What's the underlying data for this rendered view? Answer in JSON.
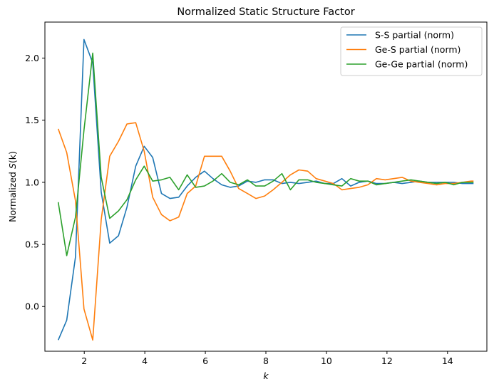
{
  "chart_data": {
    "type": "line",
    "title": "Normalized Static Structure Factor",
    "xlabel": "k",
    "ylabel_prefix": "Normalized ",
    "ylabel_var": "S",
    "ylabel_suffix": "(k)",
    "xlim": [
      0.7,
      15.3
    ],
    "ylim": [
      -0.36,
      2.29
    ],
    "xticks": [
      2,
      4,
      6,
      8,
      10,
      12,
      14
    ],
    "yticks": [
      0.0,
      0.5,
      1.0,
      1.5,
      2.0
    ],
    "xtick_labels": [
      "2",
      "4",
      "6",
      "8",
      "10",
      "12",
      "14"
    ],
    "ytick_labels": [
      "0.0",
      "0.5",
      "1.0",
      "1.5",
      "2.0"
    ],
    "grid": false,
    "legend_position": "top-right",
    "x": [
      1.14,
      1.42,
      1.71,
      1.99,
      2.28,
      2.56,
      2.84,
      3.13,
      3.41,
      3.7,
      3.98,
      4.26,
      4.55,
      4.83,
      5.12,
      5.4,
      5.68,
      5.97,
      6.25,
      6.54,
      6.82,
      7.1,
      7.39,
      7.67,
      7.96,
      8.24,
      8.53,
      8.81,
      9.09,
      9.38,
      9.66,
      9.95,
      10.23,
      10.51,
      10.8,
      11.08,
      11.37,
      11.65,
      11.94,
      12.22,
      12.5,
      12.79,
      13.07,
      13.36,
      13.64,
      13.92,
      14.21,
      14.49,
      14.78,
      14.86
    ],
    "series": [
      {
        "name": "S-S partial (norm)",
        "color": "#1f77b4",
        "values": [
          -0.27,
          -0.11,
          0.4,
          2.15,
          1.96,
          0.92,
          0.51,
          0.57,
          0.8,
          1.13,
          1.29,
          1.2,
          0.91,
          0.87,
          0.88,
          0.97,
          1.04,
          1.09,
          1.03,
          0.98,
          0.96,
          0.97,
          1.01,
          1.0,
          1.02,
          1.02,
          0.99,
          1.0,
          0.99,
          1.0,
          1.01,
          0.99,
          0.99,
          1.03,
          0.97,
          1.0,
          1.01,
          0.99,
          0.99,
          1.0,
          0.99,
          1.0,
          1.01,
          1.0,
          1.0,
          1.0,
          1.0,
          0.99,
          0.99,
          0.99
        ]
      },
      {
        "name": "Ge-S partial (norm)",
        "color": "#ff7f0e",
        "values": [
          1.43,
          1.24,
          0.85,
          -0.02,
          -0.27,
          0.7,
          1.21,
          1.33,
          1.47,
          1.48,
          1.25,
          0.88,
          0.74,
          0.69,
          0.72,
          0.91,
          0.97,
          1.21,
          1.21,
          1.21,
          1.09,
          0.95,
          0.91,
          0.87,
          0.89,
          0.94,
          1.0,
          1.06,
          1.1,
          1.09,
          1.03,
          1.01,
          0.99,
          0.94,
          0.95,
          0.96,
          0.98,
          1.03,
          1.02,
          1.03,
          1.04,
          1.01,
          1.0,
          0.99,
          0.98,
          0.99,
          0.99,
          1.0,
          1.01,
          1.01
        ]
      },
      {
        "name": "Ge-Ge partial (norm)",
        "color": "#2ca02c",
        "values": [
          0.84,
          0.41,
          0.72,
          1.42,
          2.04,
          1.04,
          0.71,
          0.77,
          0.86,
          1.02,
          1.13,
          1.01,
          1.02,
          1.04,
          0.94,
          1.06,
          0.96,
          0.97,
          1.01,
          1.07,
          1.0,
          0.98,
          1.02,
          0.97,
          0.97,
          1.01,
          1.07,
          0.94,
          1.02,
          1.02,
          1.0,
          0.99,
          0.98,
          0.97,
          1.03,
          1.01,
          1.01,
          0.98,
          0.99,
          1.0,
          1.01,
          1.02,
          1.01,
          1.0,
          0.99,
          1.0,
          0.98,
          1.0,
          1.0,
          1.0
        ]
      }
    ]
  }
}
